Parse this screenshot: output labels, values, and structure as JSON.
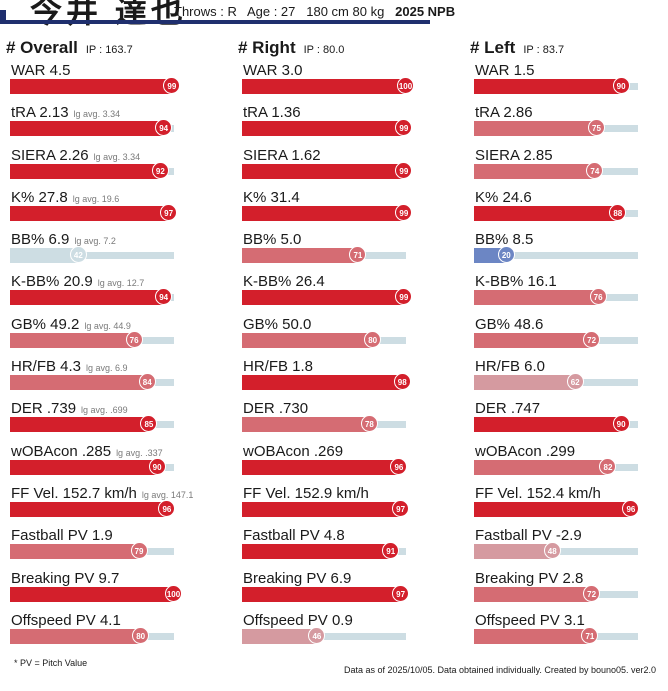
{
  "header": {
    "player_name": "今井 達也",
    "throws": "Throws : R",
    "age": "Age : 27",
    "body": "180 cm 80 kg",
    "season": "2025 NPB"
  },
  "footer": {
    "note": "* PV = Pitch Value",
    "source": "Data as of 2025/10/05. Data obtained individually. Created by bouno05.  ver2.0"
  },
  "colors": {
    "high": "#d31f2b",
    "mid_high": "#d56c73",
    "mid": "#d59aa0",
    "low_neutral": "#cddde3",
    "low": "#6c86c4"
  },
  "chart_data": {
    "type": "bar",
    "value_scale": "percentile 0-100",
    "columns": [
      {
        "title": "# Overall",
        "ip": "IP : 163.7",
        "metrics": [
          {
            "label": "WAR",
            "value": "4.5",
            "lg": "",
            "pct": 99
          },
          {
            "label": "tRA",
            "value": "2.13",
            "lg": "lg avg. 3.34",
            "pct": 94
          },
          {
            "label": "SIERA",
            "value": "2.26",
            "lg": "lg avg. 3.34",
            "pct": 92
          },
          {
            "label": "K%",
            "value": "27.8",
            "lg": "lg avg. 19.6",
            "pct": 97
          },
          {
            "label": "BB%",
            "value": "6.9",
            "lg": "lg avg. 7.2",
            "pct": 42
          },
          {
            "label": "K-BB%",
            "value": "20.9",
            "lg": "lg avg. 12.7",
            "pct": 94
          },
          {
            "label": "GB%",
            "value": "49.2",
            "lg": "lg avg. 44.9",
            "pct": 76
          },
          {
            "label": "HR/FB",
            "value": "4.3",
            "lg": "lg avg. 6.9",
            "pct": 84
          },
          {
            "label": "DER",
            "value": ".739",
            "lg": "lg avg. .699",
            "pct": 85
          },
          {
            "label": "wOBAcon",
            "value": ".285",
            "lg": "lg avg. .337",
            "pct": 90
          },
          {
            "label": "FF Vel.",
            "value": "152.7 km/h",
            "lg": "lg avg. 147.1",
            "pct": 96
          },
          {
            "label": "Fastball PV",
            "value": "1.9",
            "lg": "",
            "pct": 79
          },
          {
            "label": "Breaking PV",
            "value": "9.7",
            "lg": "",
            "pct": 100
          },
          {
            "label": "Offspeed PV",
            "value": "4.1",
            "lg": "",
            "pct": 80
          }
        ]
      },
      {
        "title": "# Right",
        "ip": "IP : 80.0",
        "metrics": [
          {
            "label": "WAR",
            "value": "3.0",
            "lg": "",
            "pct": 100
          },
          {
            "label": "tRA",
            "value": "1.36",
            "lg": "",
            "pct": 99
          },
          {
            "label": "SIERA",
            "value": "1.62",
            "lg": "",
            "pct": 99
          },
          {
            "label": "K%",
            "value": "31.4",
            "lg": "",
            "pct": 99
          },
          {
            "label": "BB%",
            "value": "5.0",
            "lg": "",
            "pct": 71
          },
          {
            "label": "K-BB%",
            "value": "26.4",
            "lg": "",
            "pct": 99
          },
          {
            "label": "GB%",
            "value": "50.0",
            "lg": "",
            "pct": 80
          },
          {
            "label": "HR/FB",
            "value": "1.8",
            "lg": "",
            "pct": 98
          },
          {
            "label": "DER",
            "value": ".730",
            "lg": "",
            "pct": 78
          },
          {
            "label": "wOBAcon",
            "value": ".269",
            "lg": "",
            "pct": 96
          },
          {
            "label": "FF Vel.",
            "value": "152.9 km/h",
            "lg": "",
            "pct": 97
          },
          {
            "label": "Fastball PV",
            "value": "4.8",
            "lg": "",
            "pct": 91
          },
          {
            "label": "Breaking PV",
            "value": "6.9",
            "lg": "",
            "pct": 97
          },
          {
            "label": "Offspeed PV",
            "value": "0.9",
            "lg": "",
            "pct": 46
          }
        ]
      },
      {
        "title": "# Left",
        "ip": "IP : 83.7",
        "metrics": [
          {
            "label": "WAR",
            "value": "1.5",
            "lg": "",
            "pct": 90
          },
          {
            "label": "tRA",
            "value": "2.86",
            "lg": "",
            "pct": 75
          },
          {
            "label": "SIERA",
            "value": "2.85",
            "lg": "",
            "pct": 74
          },
          {
            "label": "K%",
            "value": "24.6",
            "lg": "",
            "pct": 88
          },
          {
            "label": "BB%",
            "value": "8.5",
            "lg": "",
            "pct": 20
          },
          {
            "label": "K-BB%",
            "value": "16.1",
            "lg": "",
            "pct": 76
          },
          {
            "label": "GB%",
            "value": "48.6",
            "lg": "",
            "pct": 72
          },
          {
            "label": "HR/FB",
            "value": "6.0",
            "lg": "",
            "pct": 62
          },
          {
            "label": "DER",
            "value": ".747",
            "lg": "",
            "pct": 90
          },
          {
            "label": "wOBAcon",
            "value": ".299",
            "lg": "",
            "pct": 82
          },
          {
            "label": "FF Vel.",
            "value": "152.4 km/h",
            "lg": "",
            "pct": 96
          },
          {
            "label": "Fastball PV",
            "value": "-2.9",
            "lg": "",
            "pct": 48
          },
          {
            "label": "Breaking PV",
            "value": "2.8",
            "lg": "",
            "pct": 72
          },
          {
            "label": "Offspeed PV",
            "value": "3.1",
            "lg": "",
            "pct": 71
          }
        ]
      }
    ]
  }
}
